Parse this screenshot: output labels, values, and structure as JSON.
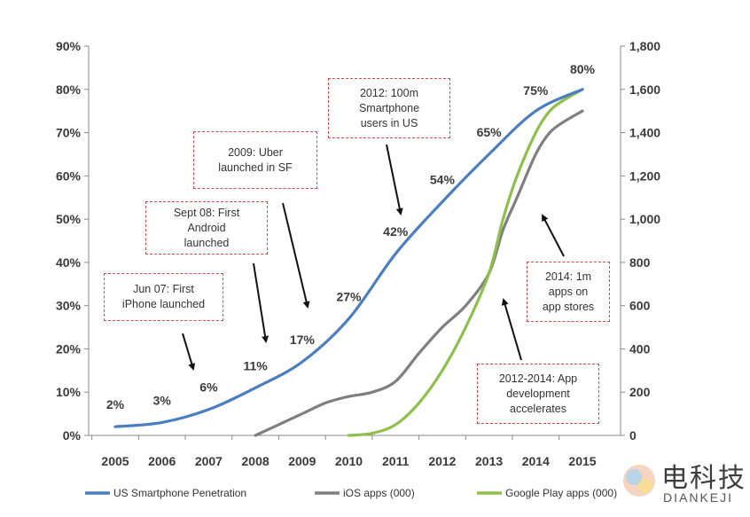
{
  "chart_data": {
    "type": "line",
    "title": "",
    "categories": [
      "2005",
      "2006",
      "2007",
      "2008",
      "2009",
      "2010",
      "2011",
      "2012",
      "2013",
      "2014",
      "2015"
    ],
    "y_left": {
      "range": [
        0,
        90
      ],
      "ticks": [
        "0%",
        "10%",
        "20%",
        "30%",
        "40%",
        "50%",
        "60%",
        "70%",
        "80%",
        "90%"
      ]
    },
    "y_right": {
      "range": [
        0,
        1800
      ],
      "ticks": [
        "0",
        "200",
        "400",
        "600",
        "800",
        "1,000",
        "1,200",
        "1,400",
        "1,600",
        "1,800"
      ]
    },
    "series": [
      {
        "name": "US Smartphone Penetration",
        "axis": "left",
        "color": "#4a7ebf",
        "x": [
          2005,
          2006,
          2007,
          2008,
          2009,
          2010,
          2011,
          2012,
          2013,
          2014,
          2015
        ],
        "values": [
          2,
          3,
          6,
          11,
          17,
          27,
          42,
          54,
          65,
          75,
          80
        ],
        "labels": [
          "2%",
          "3%",
          "6%",
          "11%",
          "17%",
          "27%",
          "42%",
          "54%",
          "65%",
          "75%",
          "80%"
        ]
      },
      {
        "name": "iOS apps (000)",
        "axis": "right",
        "color": "#7f7f7f",
        "x": [
          2008.0,
          2008.5,
          2009.0,
          2009.5,
          2010.0,
          2010.5,
          2011.0,
          2011.5,
          2012.0,
          2012.5,
          2013.0,
          2013.3,
          2013.6,
          2014.0,
          2014.3,
          2014.6,
          2015.0
        ],
        "values": [
          0,
          50,
          100,
          150,
          180,
          200,
          250,
          380,
          500,
          600,
          750,
          950,
          1100,
          1300,
          1400,
          1450,
          1500
        ]
      },
      {
        "name": "Google Play apps (000)",
        "axis": "right",
        "color": "#8dbf4a",
        "x": [
          2010.0,
          2010.5,
          2011.0,
          2011.5,
          2012.0,
          2012.5,
          2013.0,
          2013.3,
          2013.6,
          2014.0,
          2014.3,
          2014.6,
          2015.0
        ],
        "values": [
          0,
          10,
          50,
          150,
          300,
          500,
          750,
          1000,
          1200,
          1400,
          1500,
          1550,
          1600
        ]
      }
    ],
    "annotations": [
      {
        "text": "Jun 07: First\niPhone launched"
      },
      {
        "text": "Sept 08: First\nAndroid\nlaunched"
      },
      {
        "text": "2009: Uber\nlaunched in SF"
      },
      {
        "text": "2012: 100m\nSmartphone\nusers in US"
      },
      {
        "text": "2014: 1m\napps on\napp stores"
      },
      {
        "text": "2012-2014: App\ndevelopment\naccelerates"
      }
    ]
  },
  "watermark": {
    "cn": "电科技",
    "en": "DIANKEJI"
  }
}
